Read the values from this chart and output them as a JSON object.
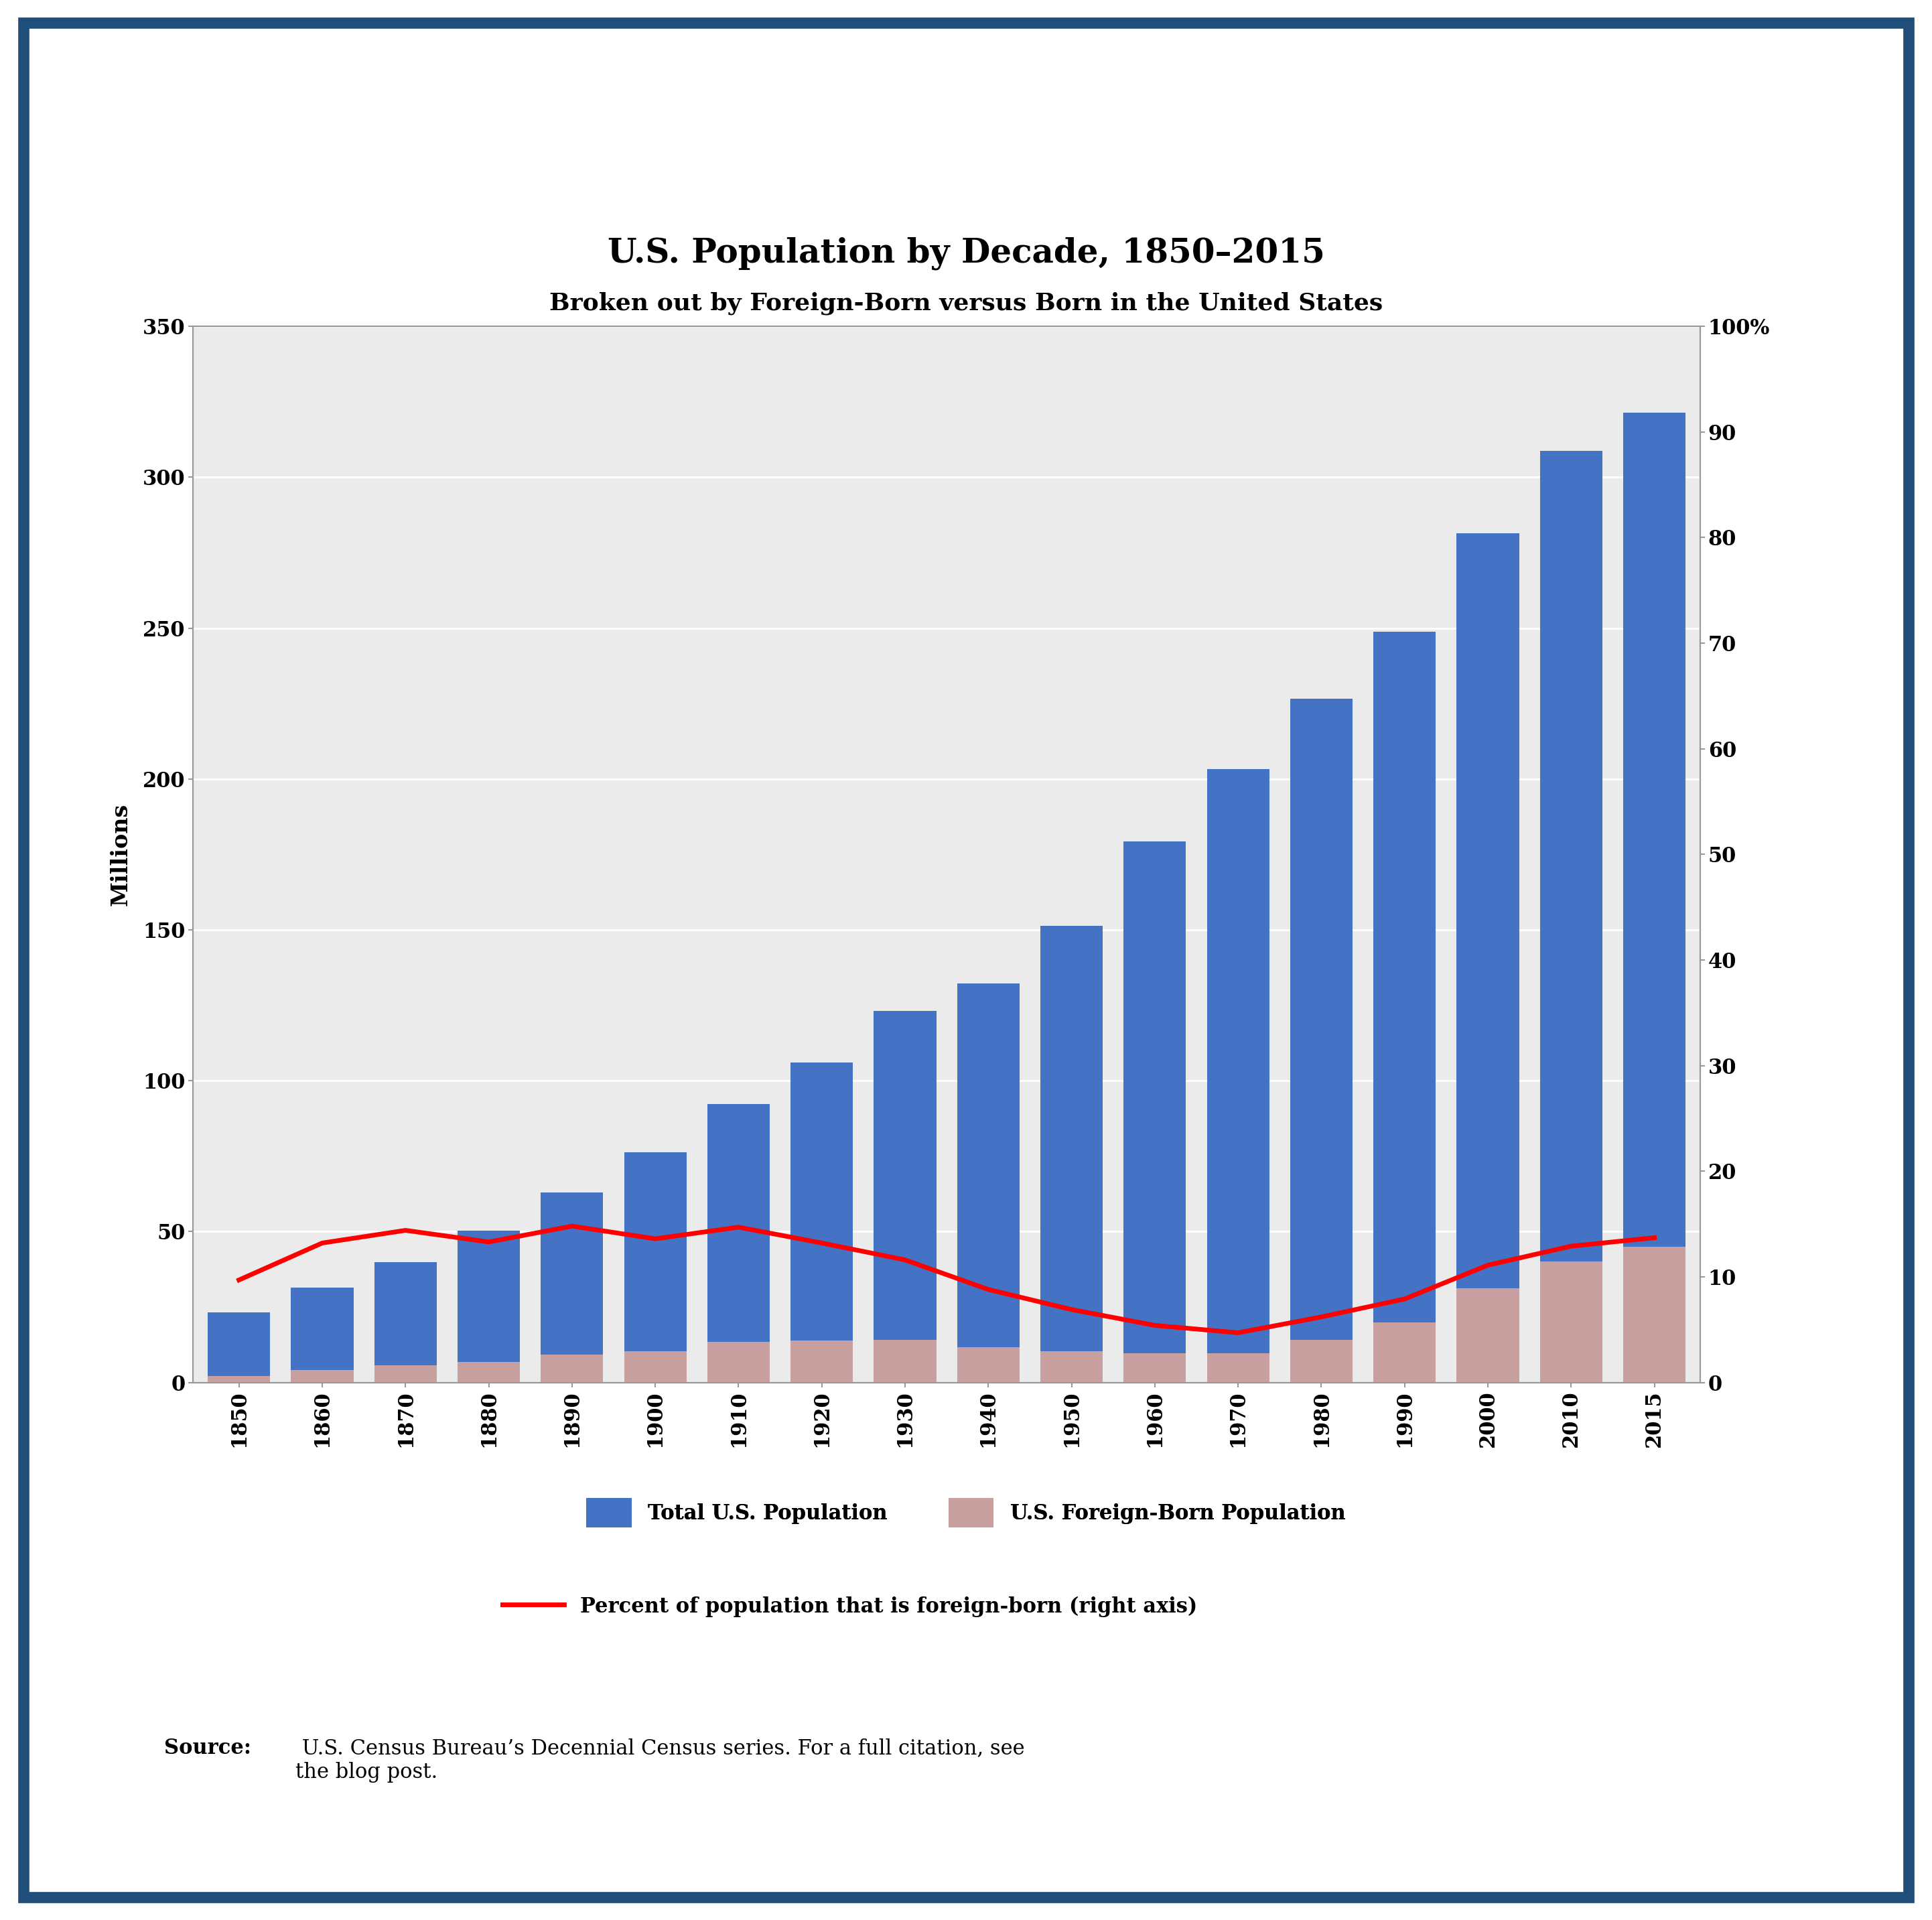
{
  "years": [
    1850,
    1860,
    1870,
    1880,
    1890,
    1900,
    1910,
    1920,
    1930,
    1940,
    1950,
    1960,
    1970,
    1980,
    1990,
    2000,
    2010,
    2015
  ],
  "total_pop": [
    23.2,
    31.4,
    39.8,
    50.2,
    62.9,
    76.2,
    92.2,
    106.0,
    123.2,
    132.2,
    151.3,
    179.3,
    203.3,
    226.5,
    248.7,
    281.4,
    308.7,
    321.4
  ],
  "foreign_born": [
    2.2,
    4.1,
    5.6,
    6.7,
    9.2,
    10.3,
    13.5,
    13.9,
    14.2,
    11.6,
    10.3,
    9.7,
    9.6,
    14.1,
    19.8,
    31.1,
    40.0,
    45.0
  ],
  "pct_foreign": [
    9.7,
    13.2,
    14.4,
    13.3,
    14.8,
    13.6,
    14.7,
    13.2,
    11.6,
    8.8,
    6.9,
    5.4,
    4.7,
    6.2,
    7.9,
    11.1,
    12.9,
    13.7
  ],
  "bar_color_total": "#4472C4",
  "bar_color_foreign": "#C9A0A0",
  "line_color": "#FF0000",
  "plot_bg": "#EBEBEB",
  "title": "U.S. Population by Decade, 1850–2015",
  "subtitle": "Broken out by Foreign-Born versus Born in the United States",
  "ylabel": "Millions",
  "ylim_left": [
    0,
    350
  ],
  "ylim_right": [
    0,
    100
  ],
  "yticks_left": [
    0,
    50,
    100,
    150,
    200,
    250,
    300,
    350
  ],
  "yticks_right": [
    0,
    10,
    20,
    30,
    40,
    50,
    60,
    70,
    80,
    90,
    100
  ],
  "ytick_right_labels": [
    "0",
    "10",
    "20",
    "30",
    "40",
    "50",
    "60",
    "70",
    "80",
    "90",
    "100%"
  ],
  "legend_total": "Total U.S. Population",
  "legend_foreign": "U.S. Foreign-Born Population",
  "legend_line": "Percent of population that is foreign-born (right axis)",
  "source_bold": "Source:",
  "source_rest": " U.S. Census Bureau’s Decennial Census series. For a full citation, see\nthe blog post.",
  "border_color": "#1F4E79",
  "title_fontsize": 36,
  "subtitle_fontsize": 26,
  "axis_label_fontsize": 24,
  "tick_fontsize": 22,
  "legend_fontsize": 22,
  "source_fontsize": 22,
  "bar_width": 0.75,
  "line_width": 5.0,
  "grid_color": "#FFFFFF",
  "spine_color": "#999999"
}
